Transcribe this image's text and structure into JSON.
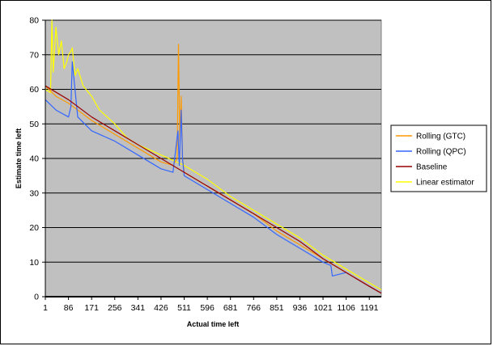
{
  "chart_data": {
    "type": "line",
    "title": "",
    "xlabel": "Actual time left",
    "ylabel": "Estimate time left",
    "xlim": [
      1,
      1235
    ],
    "ylim": [
      0,
      80
    ],
    "yticks": [
      0,
      10,
      20,
      30,
      40,
      50,
      60,
      70,
      80
    ],
    "xticks": [
      1,
      86,
      171,
      256,
      341,
      426,
      511,
      596,
      681,
      766,
      851,
      936,
      1021,
      1106,
      1191
    ],
    "grid": "horizontal",
    "plot_background": "#c0c0c0",
    "legend_position": "right",
    "series": [
      {
        "name": "Rolling (GTC)",
        "color": "#ff9900",
        "x": [
          1,
          40,
          86,
          120,
          171,
          256,
          341,
          426,
          470,
          485,
          490,
          495,
          500,
          505,
          511,
          596,
          681,
          766,
          851,
          936,
          1021,
          1106,
          1191,
          1235
        ],
        "y": [
          61,
          58,
          56,
          54,
          51,
          47,
          43,
          39,
          38,
          40,
          73,
          45,
          58,
          40,
          36,
          32,
          28,
          24,
          19,
          15,
          11,
          7,
          3,
          1
        ]
      },
      {
        "name": "Rolling (QPC)",
        "color": "#3366ff",
        "x": [
          1,
          40,
          86,
          95,
          100,
          120,
          171,
          256,
          341,
          426,
          470,
          488,
          493,
          500,
          505,
          511,
          596,
          681,
          766,
          851,
          936,
          1021,
          1050,
          1055,
          1106,
          1191,
          1235
        ],
        "y": [
          57,
          54,
          52,
          55,
          68,
          52,
          48,
          45,
          41,
          37,
          36,
          48,
          38,
          54,
          40,
          35,
          31,
          27,
          23,
          18,
          14,
          10,
          9,
          6,
          7,
          3,
          1
        ]
      },
      {
        "name": "Baseline",
        "color": "#990000",
        "x": [
          1,
          86,
          171,
          256,
          341,
          426,
          511,
          596,
          681,
          766,
          851,
          936,
          1021,
          1106,
          1191,
          1235
        ],
        "y": [
          61,
          57,
          52,
          48,
          44,
          40,
          36,
          32,
          28,
          24,
          20,
          16,
          11,
          7,
          3,
          1
        ]
      },
      {
        "name": "Linear estimator",
        "color": "#ffff00",
        "x": [
          1,
          20,
          25,
          30,
          40,
          50,
          60,
          70,
          80,
          86,
          95,
          100,
          110,
          120,
          140,
          171,
          200,
          256,
          300,
          341,
          426,
          511,
          596,
          681,
          766,
          851,
          936,
          1021,
          1106,
          1191,
          1235
        ],
        "y": [
          60,
          59,
          80,
          65,
          78,
          70,
          74,
          66,
          68,
          70,
          71,
          72,
          64,
          66,
          61,
          58,
          54,
          50,
          46,
          44,
          41,
          38,
          34,
          29,
          25,
          21,
          17,
          12,
          8,
          4,
          2
        ]
      }
    ]
  }
}
